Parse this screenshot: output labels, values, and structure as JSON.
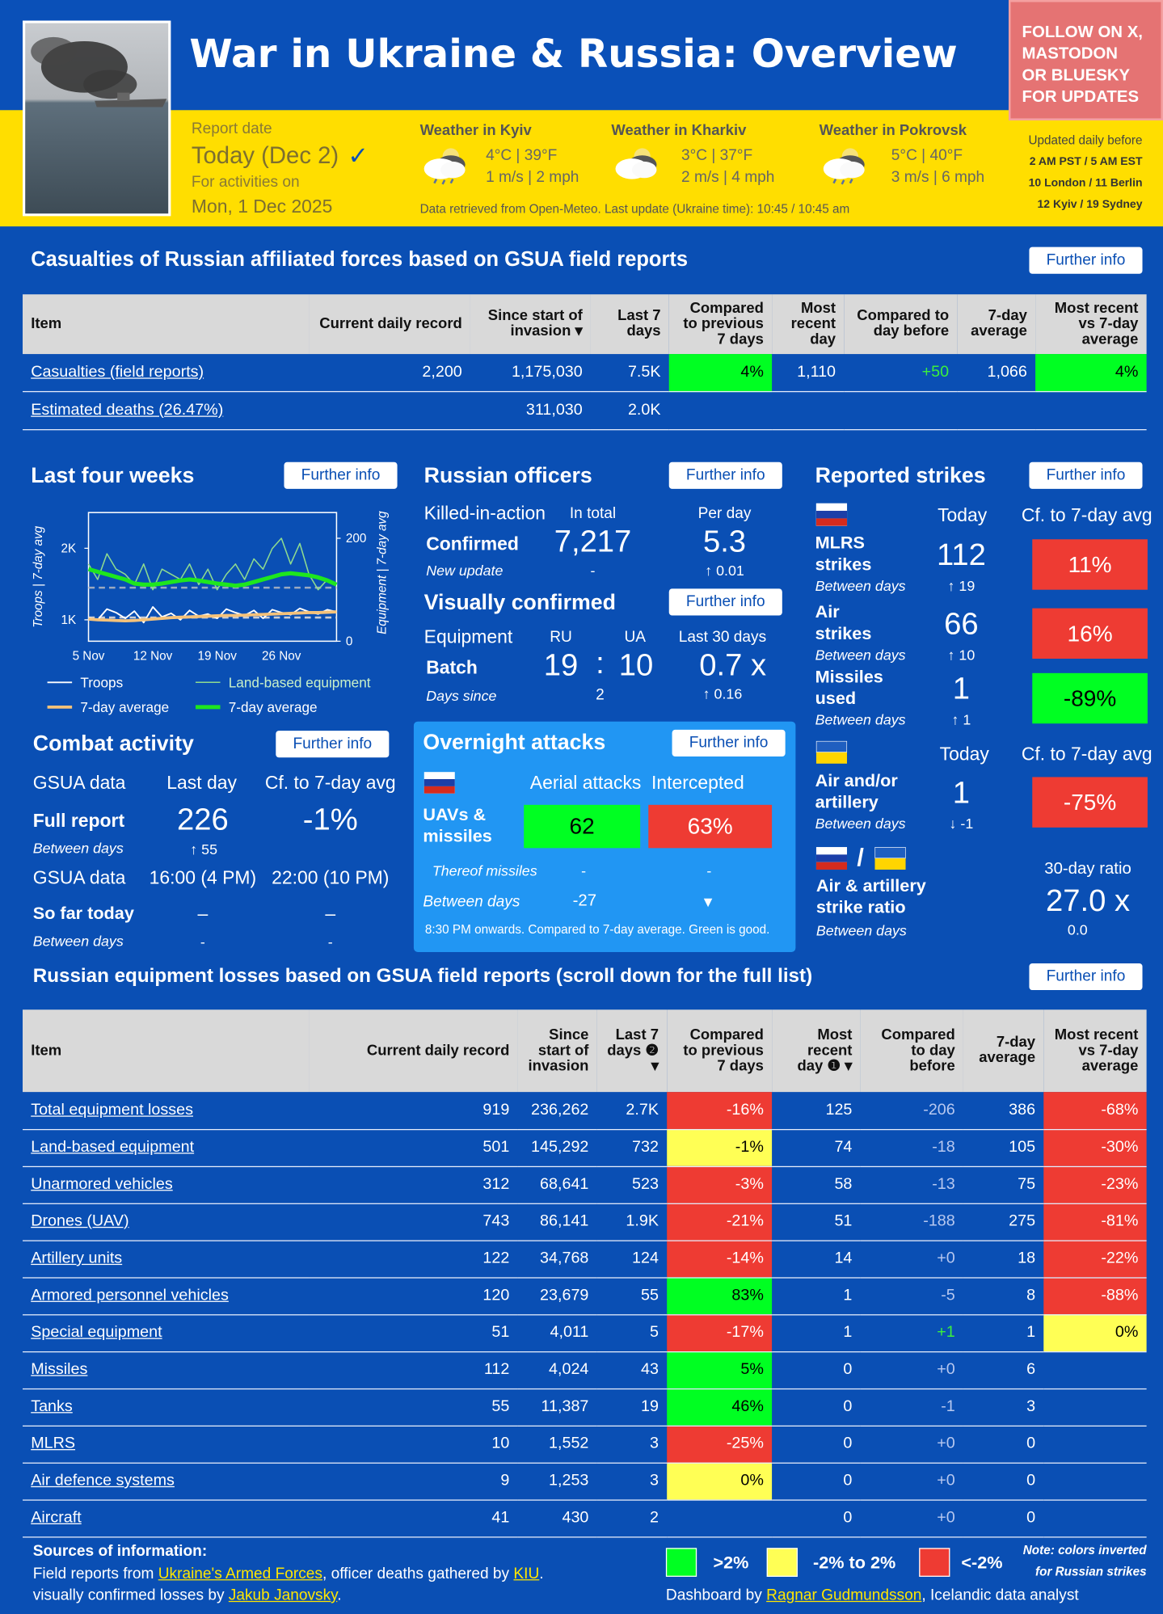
{
  "further_info": "Further info",
  "header": {
    "title": "War in Ukraine & Russia: Overview",
    "follow": [
      "FOLLOW ON X,",
      "MASTODON",
      "OR BLUESKY",
      "FOR UPDATES"
    ],
    "report_label": "Report date",
    "report_date": "Today (Dec 2)",
    "check": "✓",
    "activities_label": "For activities on",
    "activities_date": "Mon, 1 Dec 2025",
    "weather": [
      {
        "city": "Weather in Kyiv",
        "temp": "4°C | 39°F",
        "wind": "1 m/s | 2 mph"
      },
      {
        "city": "Weather in Kharkiv",
        "temp": "3°C | 37°F",
        "wind": "2 m/s | 4 mph"
      },
      {
        "city": "Weather in Pokrovsk",
        "temp": "5°C | 40°F",
        "wind": "3 m/s | 6 mph"
      }
    ],
    "weather_note": "Data retrieved from Open-Meteo. Last update (Ukraine time): 10:45 / 10:45 am",
    "updated": [
      "Updated daily before",
      "2 AM PST / 5 AM EST",
      "10 London / 11 Berlin",
      "12 Kyiv / 19 Sydney"
    ]
  },
  "casualties": {
    "title": "Casualties of Russian affiliated forces based on GSUA field reports",
    "columns": [
      "Item",
      "Current daily record",
      "Since start of invasion ▾",
      "Last 7 days",
      "Compared to previous 7 days",
      "Most recent day",
      "Compared to day before",
      "7-day average",
      "Most recent vs 7-day average"
    ],
    "rows": [
      {
        "cells": [
          "Casualties (field reports)",
          "2,200",
          "1,175,030",
          "7.5K",
          "4%",
          "1,110",
          "+50",
          "1,066",
          "4%"
        ],
        "fills": {
          "4": 0,
          "8": 0
        },
        "inks": {
          "6": "#3cf03c"
        }
      },
      {
        "cells": [
          "Estimated deaths (26.47%)",
          null,
          "311,030",
          "2.0K",
          null,
          null,
          null,
          null,
          null
        ]
      }
    ]
  },
  "four_weeks": {
    "title": "Last four weeks",
    "chart": {
      "type": "line",
      "categories": [
        "5 Nov",
        null,
        null,
        null,
        null,
        null,
        null,
        "12 Nov",
        null,
        null,
        null,
        null,
        null,
        null,
        "19 Nov",
        null,
        null,
        null,
        null,
        null,
        null,
        "26 Nov",
        null,
        null,
        null,
        null,
        null,
        null
      ],
      "ylabel": "Troops | 7-day avg",
      "y2label": "Equipment | 7-day avg",
      "ylim": [
        700,
        2500
      ],
      "yticks": [
        {
          "value": 1000,
          "label": "1K"
        },
        {
          "value": 2000,
          "label": "2K"
        }
      ],
      "y2lim": [
        0,
        250
      ],
      "y2ticks": [
        0,
        200
      ],
      "series": [
        {
          "name": "Troops",
          "color": "#ffffff",
          "width": 1.5,
          "values": [
            1030,
            1000,
            1150,
            1100,
            1020,
            1120,
            960,
            1180,
            1040,
            1090,
            1000,
            1130,
            1050,
            1080,
            1020,
            1150,
            1100,
            1060,
            1130,
            1020,
            1140,
            1100,
            1070,
            1160,
            1110,
            1080,
            1140,
            1110
          ]
        },
        {
          "name": "7-day average",
          "color": "#f5c27a",
          "width": 3,
          "values": [
            1010,
            1000,
            995,
            990,
            985,
            990,
            1000,
            1010,
            1020,
            1030,
            1035,
            1040,
            1045,
            1050,
            1055,
            1060,
            1060,
            1065,
            1070,
            1075,
            1080,
            1085,
            1090,
            1095,
            1100,
            1100,
            1105,
            1110
          ]
        },
        {
          "name": "Land-based equipment",
          "color": "#8fdc8f",
          "width": 1.2,
          "axis": "y2",
          "values": [
            150,
            120,
            170,
            140,
            130,
            110,
            150,
            100,
            140,
            130,
            120,
            150,
            110,
            140,
            100,
            130,
            150,
            120,
            160,
            140,
            180,
            200,
            150,
            190,
            130,
            100,
            120,
            110
          ]
        },
        {
          "name": "7-day average",
          "color": "#1ee61e",
          "width": 4,
          "axis": "y2",
          "values": [
            140,
            135,
            130,
            125,
            120,
            112,
            110,
            110,
            112,
            115,
            118,
            120,
            118,
            115,
            112,
            110,
            108,
            110,
            115,
            120,
            125,
            130,
            132,
            130,
            128,
            124,
            118,
            110
          ]
        }
      ]
    }
  },
  "officers": {
    "title": "Russian officers",
    "kia": "Killed-in-action",
    "in_total": "In total",
    "per_day": "Per day",
    "confirmed": "Confirmed",
    "total": "7,217",
    "rate": "5.3",
    "new_update": "New update",
    "total_change": "-",
    "rate_change": "↑ 0.01"
  },
  "visual": {
    "title": "Visually confirmed",
    "equipment": "Equipment",
    "ru": "RU",
    "ua": "UA",
    "last30": "Last 30 days",
    "batch": "Batch",
    "ru_value": "19",
    "sep": ":",
    "ua_value": "10",
    "ratio": "0.7 x",
    "days_since": "Days since",
    "days": "2",
    "ratio_change": "↑ 0.16"
  },
  "strikes": {
    "title": "Reported strikes",
    "today": "Today",
    "cf": "Cf. to 7-day avg",
    "russian": [
      {
        "label": [
          "MLRS",
          "strikes"
        ],
        "value": "112",
        "between": "Between days",
        "change": "↑ 19",
        "cf": "11%",
        "fill": 2
      },
      {
        "label": [
          "Air",
          "strikes"
        ],
        "value": "66",
        "between": "Between days",
        "change": "↑ 10",
        "cf": "16%",
        "fill": 2
      },
      {
        "label": [
          "Missiles",
          "used"
        ],
        "value": "1",
        "between": "Between days",
        "change": "↑ 1",
        "cf": "-89%",
        "fill": 0
      }
    ],
    "ukrainian": [
      {
        "label": [
          "Air and/or",
          "artillery"
        ],
        "value": "1",
        "between": "Between days",
        "change": "↓ -1",
        "cf": "-75%",
        "fill": 2
      }
    ],
    "slash": "/",
    "ratio": {
      "label": [
        "Air & artillery",
        "strike ratio"
      ],
      "between": "Between days",
      "title": "30-day ratio",
      "value": "27.0 x",
      "change": "0.0"
    }
  },
  "combat": {
    "title": "Combat activity",
    "source": "GSUA data",
    "last_day": "Last day",
    "cf": "Cf. to 7-day avg",
    "full_report": "Full report",
    "value": "226",
    "cf_value": "-1%",
    "between": "Between days",
    "change": "↑ 55",
    "time_label": "GSUA data",
    "time1": "16:00 (4 PM)",
    "time2": "22:00 (10 PM)",
    "so_far": "So far today",
    "so_far1": "–",
    "so_far2": "–",
    "between2": "Between days",
    "between2_1": "-",
    "between2_2": "-"
  },
  "overnight": {
    "title": "Overnight attacks",
    "aerial": "Aerial attacks",
    "intercepted": "Intercepted",
    "label": [
      "UAVs &",
      "missiles"
    ],
    "value": "62",
    "value_fill": 0,
    "rate": "63%",
    "rate_fill": 2,
    "missiles": "Thereof missiles",
    "missiles1": "-",
    "missiles2": "-",
    "between": "Between days",
    "between1": "-27",
    "between2": "▼",
    "note": "8:30 PM onwards. Compared to 7-day average. Green is good."
  },
  "equipment": {
    "title": "Russian equipment losses based on GSUA field reports (scroll down for the full list)",
    "columns": [
      "Item",
      "Current daily record",
      "Since start of invasion",
      "Last 7 days ❷ ▾",
      "Compared to previous 7 days",
      "Most recent day ❶ ▾",
      "Compared to day before",
      "7-day average",
      "Most recent vs 7-day average"
    ],
    "rows": [
      {
        "cells": [
          "Total equipment losses",
          "919",
          "236,262",
          "2.7K",
          "-16%",
          "125",
          "-206",
          "386",
          "-68%"
        ],
        "fills": {
          "4": 2,
          "8": 2
        }
      },
      {
        "cells": [
          "Land-based equipment",
          "501",
          "145,292",
          "732",
          "-1%",
          "74",
          "-18",
          "105",
          "-30%"
        ],
        "fills": {
          "4": 1,
          "8": 2
        }
      },
      {
        "cells": [
          "Unarmored vehicles",
          "312",
          "68,641",
          "523",
          "-3%",
          "58",
          "-13",
          "75",
          "-23%"
        ],
        "fills": {
          "4": 2,
          "8": 2
        }
      },
      {
        "cells": [
          "Drones (UAV)",
          "743",
          "86,141",
          "1.9K",
          "-21%",
          "51",
          "-188",
          "275",
          "-81%"
        ],
        "fills": {
          "4": 2,
          "8": 2
        }
      },
      {
        "cells": [
          "Artillery units",
          "122",
          "34,768",
          "124",
          "-14%",
          "14",
          "+0",
          "18",
          "-22%"
        ],
        "fills": {
          "4": 2,
          "8": 2
        }
      },
      {
        "cells": [
          "Armored personnel vehicles",
          "120",
          "23,679",
          "55",
          "83%",
          "1",
          "-5",
          "8",
          "-88%"
        ],
        "fills": {
          "4": 0,
          "8": 2
        }
      },
      {
        "cells": [
          "Special equipment",
          "51",
          "4,011",
          "5",
          "-17%",
          "1",
          "+1",
          "1",
          "0%"
        ],
        "fills": {
          "4": 2,
          "8": 1
        },
        "inks": {
          "6": "#3cf03c"
        }
      },
      {
        "cells": [
          "Missiles",
          "112",
          "4,024",
          "43",
          "5%",
          "0",
          "+0",
          "6",
          null
        ],
        "fills": {
          "4": 0
        }
      },
      {
        "cells": [
          "Tanks",
          "55",
          "11,387",
          "19",
          "46%",
          "0",
          "-1",
          "3",
          null
        ],
        "fills": {
          "4": 0
        }
      },
      {
        "cells": [
          "MLRS",
          "10",
          "1,552",
          "3",
          "-25%",
          "0",
          "+0",
          "0",
          null
        ],
        "fills": {
          "4": 2
        }
      },
      {
        "cells": [
          "Air defence systems",
          "9",
          "1,253",
          "3",
          "0%",
          "0",
          "+0",
          "0",
          null
        ],
        "fills": {
          "4": 1
        }
      },
      {
        "cells": [
          "Aircraft",
          "41",
          "430",
          "2",
          null,
          "0",
          "+0",
          "0",
          null
        ]
      }
    ]
  },
  "footer": {
    "sources_title": "Sources of information:",
    "line1": [
      "Field reports from ",
      "Ukraine's Armed Forces",
      ", officer deaths gathered by ",
      "KIU",
      "."
    ],
    "line2": [
      "visually confirmed losses by ",
      "Jakub Janovsky",
      "."
    ],
    "legend": [
      {
        "color": "#00ff22",
        "ink": "#000000",
        "label": ">2%"
      },
      {
        "color": "#ffff55",
        "ink": "#000000",
        "label": "-2% to 2%"
      },
      {
        "color": "#ee3b33",
        "ink": "#ffffff",
        "label": "<-2%"
      }
    ],
    "note": [
      "Note: colors inverted",
      "for Russian strikes"
    ],
    "credit": [
      "Dashboard by ",
      "Ragnar Gudmundsson",
      ", Icelandic data analyst"
    ]
  }
}
